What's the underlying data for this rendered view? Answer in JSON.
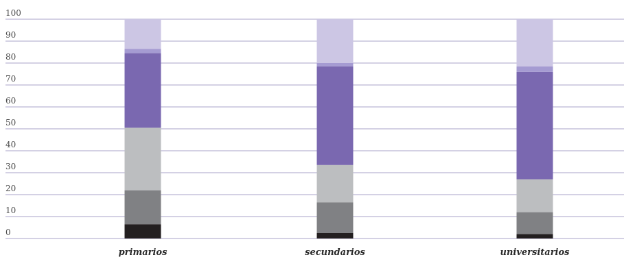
{
  "chart_data": {
    "type": "bar",
    "stacked": true,
    "categories": [
      "primarios",
      "secundarios",
      "universitarios"
    ],
    "ylim": [
      0,
      100
    ],
    "yticks": [
      0,
      10,
      20,
      30,
      40,
      50,
      60,
      70,
      80,
      90,
      100
    ],
    "grid": true,
    "legend": "none",
    "series": [
      {
        "color": "#231f20",
        "values": [
          6.5,
          2.5,
          2
        ]
      },
      {
        "color": "#808184",
        "values": [
          15.5,
          14,
          10
        ]
      },
      {
        "color": "#bcbec0",
        "values": [
          28.5,
          17,
          15
        ]
      },
      {
        "color": "#7a68b0",
        "values": [
          34,
          45,
          49
        ]
      },
      {
        "color": "#a59bd2",
        "values": [
          2,
          1.5,
          2.5
        ]
      },
      {
        "color": "#ccc6e4",
        "values": [
          13.5,
          20,
          21.5
        ]
      }
    ]
  }
}
